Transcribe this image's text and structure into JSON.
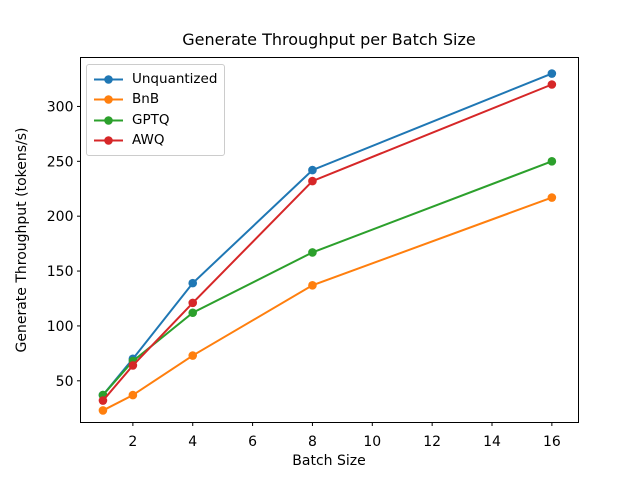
{
  "chart_data": {
    "type": "line",
    "title": "Generate Throughput per Batch Size",
    "xlabel": "Batch Size",
    "ylabel": "Generate Throughput (tokens/s)",
    "x": [
      1,
      2,
      4,
      8,
      16
    ],
    "series": [
      {
        "name": "Unquantized",
        "color": "#1f77b4",
        "values": [
          37,
          70,
          139,
          242,
          330
        ]
      },
      {
        "name": "BnB",
        "color": "#ff7f0e",
        "values": [
          23,
          37,
          73,
          137,
          217
        ]
      },
      {
        "name": "GPTQ",
        "color": "#2ca02c",
        "values": [
          37,
          68,
          112,
          167,
          250
        ]
      },
      {
        "name": "AWQ",
        "color": "#d62728",
        "values": [
          32,
          64,
          121,
          232,
          320
        ]
      }
    ],
    "xticks": [
      2,
      4,
      6,
      8,
      10,
      12,
      14,
      16
    ],
    "yticks": [
      50,
      100,
      150,
      200,
      250,
      300
    ],
    "xlim": [
      0.25,
      16.89
    ],
    "ylim": [
      12,
      344.6
    ],
    "grid": false,
    "legend_position": "upper left",
    "marker": "o",
    "line_width": 2,
    "background": "#ffffff",
    "axis_color": "#000000"
  }
}
